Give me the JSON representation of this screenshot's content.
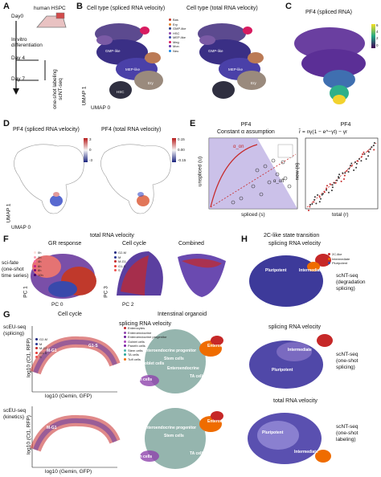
{
  "panel_letters": [
    "A",
    "B",
    "C",
    "D",
    "E",
    "F",
    "G",
    "H"
  ],
  "panelA": {
    "source": "human HSPC",
    "day0": "Day0",
    "diff": "In vitro\ndifferentiation",
    "day4": "Day 4",
    "day7": "Day 7",
    "labeling": "one-shot labeling\nscNT-seq"
  },
  "panelB": {
    "title_left": "Cell type (spliced RNA velocity)",
    "title_right": "Cell type (total RNA velocity)",
    "axis_x": "UMAP 0",
    "axis_y": "UMAP 1",
    "legend": [
      "Bas",
      "Ery",
      "GMP-like",
      "HSC",
      "MEP-like",
      "Meg",
      "Mon",
      "Neu"
    ],
    "cluster_labels": [
      "GMP-like",
      "MEP-like",
      "Ery",
      "HSC"
    ],
    "colors": [
      "#c0392b",
      "#e67e22",
      "#2c3e87",
      "#8e44ad",
      "#3949ab",
      "#d81b60",
      "#5e35b1",
      "#1e88e5"
    ]
  },
  "panelC": {
    "title": "PF4 (spliced RNA)",
    "colorbar": [
      "6",
      "4",
      "2",
      "0"
    ]
  },
  "panelD": {
    "title_left": "PF4 (spliced RNA velocity)",
    "title_right": "PF4 (total RNA velocity)",
    "cb_left": [
      "3",
      "0",
      "-3"
    ],
    "cb_right": [
      "0.15",
      "0.00",
      "-0.15"
    ],
    "axis_x": "UMAP 0",
    "axis_y": "UMAP 1"
  },
  "panelE": {
    "gene": "PF4",
    "subtitle": "Constant α assumption",
    "xlabel": "spliced (s)",
    "ylabel": "unspliced (u)",
    "ann_on": "α_on",
    "ann_off": "α_off",
    "right_title": "PF4",
    "equation": "r̂ = nγ(1 − e^−γt) − γr",
    "note": "different for each\ngene in each cell",
    "right_xlabel": "total (r)",
    "right_ylabel": "new (n)"
  },
  "panelF": {
    "header": "total RNA velocity",
    "row_label": "sci-fate\n(one-shot\ntime series)",
    "sub1": "GR response",
    "sub2": "Cell cycle",
    "sub3": "Combined",
    "legend1": [
      "0h",
      "2h",
      "4h",
      "6h",
      "8h",
      "10h"
    ],
    "legend2": [
      "G2-M",
      "M",
      "M-G1",
      "G1-S",
      "S"
    ],
    "ax1x": "PC 0",
    "ax1y": "PC 1",
    "ax2x": "PC 2",
    "ax2y": "PC 3"
  },
  "panelG": {
    "header_left": "Cell cycle",
    "header_mid": "Intenstinal organoid",
    "row1": "scEU-seq\n(splicing)",
    "row2": "scEU-seq\n(kinetics)",
    "velocity_title": "splicing RNA velocity",
    "xlabel": "log10 (Gemin, GFP)",
    "ylabel": "log10 (Ct1, RFP)",
    "legend": [
      "G2-M",
      "M",
      "M-G1",
      "G1-S",
      "S"
    ],
    "organoid_legend": [
      "Enterocytes",
      "Enteroendocrine",
      "Enteroendocrine progenitor",
      "Goblet cells",
      "Paneth cells",
      "Stem cells",
      "TA cells",
      "Tuft cells"
    ],
    "labels": [
      "M-G1",
      "G1-S",
      "Enteroendocrine progenitor",
      "Stem cells",
      "Goblet cells",
      "Enteroendocrine",
      "Paneth cells",
      "TA cells",
      "Enterocytes"
    ]
  },
  "panelH": {
    "header": "2C-like state transition",
    "sub1": "splicing RNA velocity",
    "sub2": "splicing RNA velocity",
    "sub3": "total RNA velocity",
    "legend": [
      "2C-like",
      "Intermediate",
      "Pluripotent"
    ],
    "row1": "scNT-seq\n(degradation\nsplicing)",
    "row2": "scNT-seq\n(one-shot\nsplicing)",
    "row3": "scNT-seq\n(one-shot\nlabeling)",
    "labels": [
      "Pluripotent",
      "2C-like",
      "Intermediate"
    ]
  },
  "colors": {
    "purple": "#5a4fb0",
    "red": "#c62828",
    "orange": "#ef6c00",
    "teal": "#4db6ac",
    "blue": "#3f51b5"
  }
}
